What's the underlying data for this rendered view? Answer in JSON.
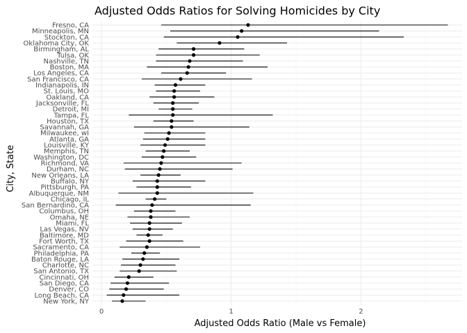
{
  "chart_data": {
    "type": "scatter",
    "title": "Adjusted Odds Ratios for Solving Homicides by City",
    "xlabel": "Adjusted Odds Ratio (Male vs Female)",
    "ylabel": "City, State",
    "xlim": [
      -0.07,
      2.78
    ],
    "x_ticks": [
      0,
      1,
      2
    ],
    "x_tick_labels": [
      "0",
      "1",
      "2"
    ],
    "grid": true,
    "cities": [
      {
        "city": "Fresno, CA",
        "or": 1.13,
        "lo": 0.46,
        "hi": 2.67
      },
      {
        "city": "Minneapolis, MN",
        "or": 1.08,
        "lo": 0.53,
        "hi": 2.14
      },
      {
        "city": "Stockton, CA",
        "or": 1.05,
        "lo": 0.48,
        "hi": 2.33
      },
      {
        "city": "Oklahoma City, OK",
        "or": 0.91,
        "lo": 0.58,
        "hi": 1.43
      },
      {
        "city": "Birmingham, AL",
        "or": 0.71,
        "lo": 0.44,
        "hi": 1.1
      },
      {
        "city": "Tulsa, OK",
        "or": 0.71,
        "lo": 0.42,
        "hi": 1.22
      },
      {
        "city": "Nashville, TN",
        "or": 0.68,
        "lo": 0.42,
        "hi": 1.09
      },
      {
        "city": "Boston, MA",
        "or": 0.67,
        "lo": 0.35,
        "hi": 1.28
      },
      {
        "city": "Los Angeles, CA",
        "or": 0.66,
        "lo": 0.46,
        "hi": 0.96
      },
      {
        "city": "San Francisco, CA",
        "or": 0.61,
        "lo": 0.31,
        "hi": 1.16
      },
      {
        "city": "Indianapolis, IN",
        "or": 0.57,
        "lo": 0.41,
        "hi": 0.8
      },
      {
        "city": "St. Louis, MO",
        "or": 0.56,
        "lo": 0.42,
        "hi": 0.76
      },
      {
        "city": "Oakland, CA",
        "or": 0.56,
        "lo": 0.37,
        "hi": 0.87
      },
      {
        "city": "Jacksonville, FL",
        "or": 0.55,
        "lo": 0.4,
        "hi": 0.75
      },
      {
        "city": "Detroit, MI",
        "or": 0.55,
        "lo": 0.44,
        "hi": 0.7
      },
      {
        "city": "Tampa, FL",
        "or": 0.55,
        "lo": 0.21,
        "hi": 1.32
      },
      {
        "city": "Houston, TX",
        "or": 0.54,
        "lo": 0.4,
        "hi": 0.71
      },
      {
        "city": "Savannah, GA",
        "or": 0.54,
        "lo": 0.25,
        "hi": 1.14
      },
      {
        "city": "Milwaukee, wI",
        "or": 0.52,
        "lo": 0.33,
        "hi": 0.8
      },
      {
        "city": "Atlanta, GA",
        "or": 0.51,
        "lo": 0.32,
        "hi": 0.8
      },
      {
        "city": "Louisville, KY",
        "or": 0.49,
        "lo": 0.3,
        "hi": 0.8
      },
      {
        "city": "Memphis, TN",
        "or": 0.48,
        "lo": 0.34,
        "hi": 0.68
      },
      {
        "city": "Washington, DC",
        "or": 0.47,
        "lo": 0.31,
        "hi": 0.73
      },
      {
        "city": "Richmond, VA",
        "or": 0.46,
        "lo": 0.17,
        "hi": 1.08
      },
      {
        "city": "Durham, NC",
        "or": 0.45,
        "lo": 0.18,
        "hi": 1.01
      },
      {
        "city": "New Orleans, LA",
        "or": 0.44,
        "lo": 0.3,
        "hi": 0.61
      },
      {
        "city": "Buffalo, NY",
        "or": 0.43,
        "lo": 0.24,
        "hi": 0.8
      },
      {
        "city": "Pittsburgh, PA",
        "or": 0.43,
        "lo": 0.27,
        "hi": 0.69
      },
      {
        "city": "Albuquerque, NM",
        "or": 0.43,
        "lo": 0.13,
        "hi": 1.17
      },
      {
        "city": "Chicago, IL",
        "or": 0.41,
        "lo": 0.34,
        "hi": 0.5
      },
      {
        "city": "San Bernardino, CA",
        "or": 0.39,
        "lo": 0.11,
        "hi": 1.15
      },
      {
        "city": "Columbus, OH",
        "or": 0.38,
        "lo": 0.25,
        "hi": 0.57
      },
      {
        "city": "Omaha, NE",
        "or": 0.38,
        "lo": 0.2,
        "hi": 0.68
      },
      {
        "city": "Miami, FL",
        "or": 0.37,
        "lo": 0.22,
        "hi": 0.62
      },
      {
        "city": "Las Vegas, NV",
        "or": 0.37,
        "lo": 0.24,
        "hi": 0.55
      },
      {
        "city": "Baltimore, MD",
        "or": 0.36,
        "lo": 0.27,
        "hi": 0.47
      },
      {
        "city": "Fort Worth, TX",
        "or": 0.37,
        "lo": 0.19,
        "hi": 0.63
      },
      {
        "city": "Sacramento, CA",
        "or": 0.35,
        "lo": 0.14,
        "hi": 0.76
      },
      {
        "city": "Philadelphia, PA",
        "or": 0.33,
        "lo": 0.23,
        "hi": 0.45
      },
      {
        "city": "Baton Rouge, LA",
        "or": 0.32,
        "lo": 0.16,
        "hi": 0.6
      },
      {
        "city": "Charlotte, NC",
        "or": 0.3,
        "lo": 0.15,
        "hi": 0.57
      },
      {
        "city": "San Antonio, TX",
        "or": 0.29,
        "lo": 0.14,
        "hi": 0.58
      },
      {
        "city": "Cincinnati, OH",
        "or": 0.21,
        "lo": 0.1,
        "hi": 0.4
      },
      {
        "city": "San Diego, CA",
        "or": 0.2,
        "lo": 0.07,
        "hi": 0.52
      },
      {
        "city": "Denver, CO",
        "or": 0.19,
        "lo": 0.06,
        "hi": 0.48
      },
      {
        "city": "Long Beach, CA",
        "or": 0.17,
        "lo": 0.04,
        "hi": 0.6
      },
      {
        "city": "New York, NY",
        "or": 0.16,
        "lo": 0.08,
        "hi": 0.34
      }
    ]
  }
}
